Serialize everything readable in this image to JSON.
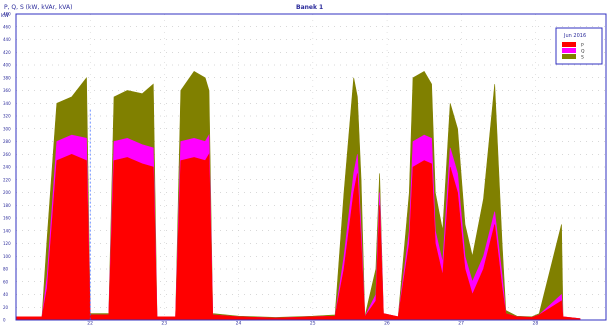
{
  "header": {
    "top_left": "P, Q, S (kW, kVAr, kVA)",
    "title": "Banek 1"
  },
  "chart_data": {
    "type": "area",
    "title": "Banek 1",
    "ylabel": "P, Q, S (kW, kVAr, kVA)",
    "y_unit": "kW",
    "ylim": [
      0,
      480
    ],
    "y_ticks": [
      0,
      20,
      40,
      60,
      80,
      100,
      120,
      140,
      160,
      180,
      200,
      220,
      240,
      260,
      280,
      300,
      320,
      340,
      360,
      380,
      400,
      420,
      440,
      460,
      480
    ],
    "x_ticks": [
      "22",
      "23",
      "24",
      "25",
      "26",
      "27",
      "28"
    ],
    "xlim": [
      21.0,
      28.95
    ],
    "grid": true,
    "legend": {
      "title": "Jun 2016",
      "position": "top-right",
      "entries": [
        {
          "key": "P",
          "label": "P",
          "color": "#ff0000"
        },
        {
          "key": "Q",
          "label": "Q",
          "color": "#ff00ff"
        },
        {
          "key": "S",
          "label": "S",
          "color": "#808000"
        }
      ]
    },
    "marker_line_x": 22.0,
    "series": [
      {
        "name": "P",
        "color": "#ff0000",
        "points": [
          [
            21.0,
            5
          ],
          [
            21.35,
            5
          ],
          [
            21.42,
            50
          ],
          [
            21.55,
            250
          ],
          [
            21.75,
            260
          ],
          [
            21.95,
            250
          ],
          [
            22.0,
            8
          ],
          [
            22.25,
            8
          ],
          [
            22.32,
            250
          ],
          [
            22.5,
            255
          ],
          [
            22.7,
            245
          ],
          [
            22.85,
            240
          ],
          [
            22.9,
            5
          ],
          [
            23.15,
            5
          ],
          [
            23.22,
            250
          ],
          [
            23.4,
            255
          ],
          [
            23.55,
            250
          ],
          [
            23.6,
            260
          ],
          [
            23.65,
            8
          ],
          [
            24.0,
            5
          ],
          [
            24.5,
            3
          ],
          [
            25.0,
            5
          ],
          [
            25.3,
            6
          ],
          [
            25.42,
            80
          ],
          [
            25.55,
            200
          ],
          [
            25.6,
            230
          ],
          [
            25.65,
            120
          ],
          [
            25.7,
            5
          ],
          [
            25.85,
            30
          ],
          [
            25.9,
            180
          ],
          [
            25.95,
            10
          ],
          [
            26.15,
            5
          ],
          [
            26.3,
            120
          ],
          [
            26.35,
            240
          ],
          [
            26.5,
            250
          ],
          [
            26.6,
            245
          ],
          [
            26.65,
            120
          ],
          [
            26.75,
            70
          ],
          [
            26.85,
            240
          ],
          [
            26.95,
            200
          ],
          [
            27.05,
            80
          ],
          [
            27.15,
            40
          ],
          [
            27.3,
            80
          ],
          [
            27.45,
            150
          ],
          [
            27.55,
            50
          ],
          [
            27.6,
            10
          ],
          [
            27.75,
            5
          ],
          [
            27.95,
            4
          ],
          [
            28.05,
            8
          ],
          [
            28.35,
            30
          ],
          [
            28.37,
            5
          ],
          [
            28.6,
            2
          ]
        ]
      },
      {
        "name": "Q",
        "color": "#ff00ff",
        "points": [
          [
            21.0,
            5
          ],
          [
            21.35,
            5
          ],
          [
            21.42,
            70
          ],
          [
            21.55,
            280
          ],
          [
            21.75,
            290
          ],
          [
            21.95,
            285
          ],
          [
            22.0,
            8
          ],
          [
            22.25,
            8
          ],
          [
            22.32,
            280
          ],
          [
            22.5,
            285
          ],
          [
            22.7,
            275
          ],
          [
            22.85,
            270
          ],
          [
            22.9,
            5
          ],
          [
            23.15,
            5
          ],
          [
            23.22,
            280
          ],
          [
            23.4,
            285
          ],
          [
            23.55,
            280
          ],
          [
            23.6,
            290
          ],
          [
            23.65,
            8
          ],
          [
            24.0,
            5
          ],
          [
            24.5,
            3
          ],
          [
            25.0,
            5
          ],
          [
            25.3,
            6
          ],
          [
            25.42,
            100
          ],
          [
            25.55,
            230
          ],
          [
            25.6,
            260
          ],
          [
            25.65,
            140
          ],
          [
            25.7,
            5
          ],
          [
            25.85,
            40
          ],
          [
            25.9,
            200
          ],
          [
            25.95,
            10
          ],
          [
            26.15,
            5
          ],
          [
            26.3,
            140
          ],
          [
            26.35,
            280
          ],
          [
            26.5,
            290
          ],
          [
            26.6,
            285
          ],
          [
            26.65,
            140
          ],
          [
            26.75,
            90
          ],
          [
            26.85,
            270
          ],
          [
            26.95,
            230
          ],
          [
            27.05,
            100
          ],
          [
            27.15,
            60
          ],
          [
            27.3,
            100
          ],
          [
            27.45,
            170
          ],
          [
            27.55,
            70
          ],
          [
            27.6,
            10
          ],
          [
            27.75,
            5
          ],
          [
            27.95,
            4
          ],
          [
            28.05,
            8
          ],
          [
            28.35,
            40
          ],
          [
            28.37,
            5
          ],
          [
            28.6,
            2
          ]
        ]
      },
      {
        "name": "S",
        "color": "#808000",
        "points": [
          [
            21.0,
            5
          ],
          [
            21.35,
            5
          ],
          [
            21.42,
            130
          ],
          [
            21.55,
            340
          ],
          [
            21.75,
            350
          ],
          [
            21.95,
            380
          ],
          [
            22.0,
            10
          ],
          [
            22.25,
            10
          ],
          [
            22.32,
            350
          ],
          [
            22.5,
            360
          ],
          [
            22.7,
            355
          ],
          [
            22.85,
            370
          ],
          [
            22.9,
            5
          ],
          [
            23.15,
            5
          ],
          [
            23.22,
            360
          ],
          [
            23.4,
            390
          ],
          [
            23.55,
            380
          ],
          [
            23.6,
            360
          ],
          [
            23.65,
            10
          ],
          [
            24.0,
            6
          ],
          [
            24.5,
            4
          ],
          [
            25.0,
            6
          ],
          [
            25.3,
            8
          ],
          [
            25.42,
            200
          ],
          [
            25.55,
            380
          ],
          [
            25.6,
            350
          ],
          [
            25.65,
            220
          ],
          [
            25.7,
            5
          ],
          [
            25.85,
            80
          ],
          [
            25.9,
            230
          ],
          [
            25.95,
            10
          ],
          [
            26.15,
            5
          ],
          [
            26.3,
            200
          ],
          [
            26.35,
            380
          ],
          [
            26.5,
            390
          ],
          [
            26.6,
            370
          ],
          [
            26.65,
            200
          ],
          [
            26.75,
            140
          ],
          [
            26.85,
            340
          ],
          [
            26.95,
            300
          ],
          [
            27.05,
            150
          ],
          [
            27.15,
            100
          ],
          [
            27.3,
            190
          ],
          [
            27.45,
            370
          ],
          [
            27.55,
            120
          ],
          [
            27.6,
            15
          ],
          [
            27.75,
            6
          ],
          [
            27.95,
            5
          ],
          [
            28.05,
            10
          ],
          [
            28.35,
            150
          ],
          [
            28.37,
            5
          ],
          [
            28.6,
            2
          ]
        ]
      }
    ]
  }
}
